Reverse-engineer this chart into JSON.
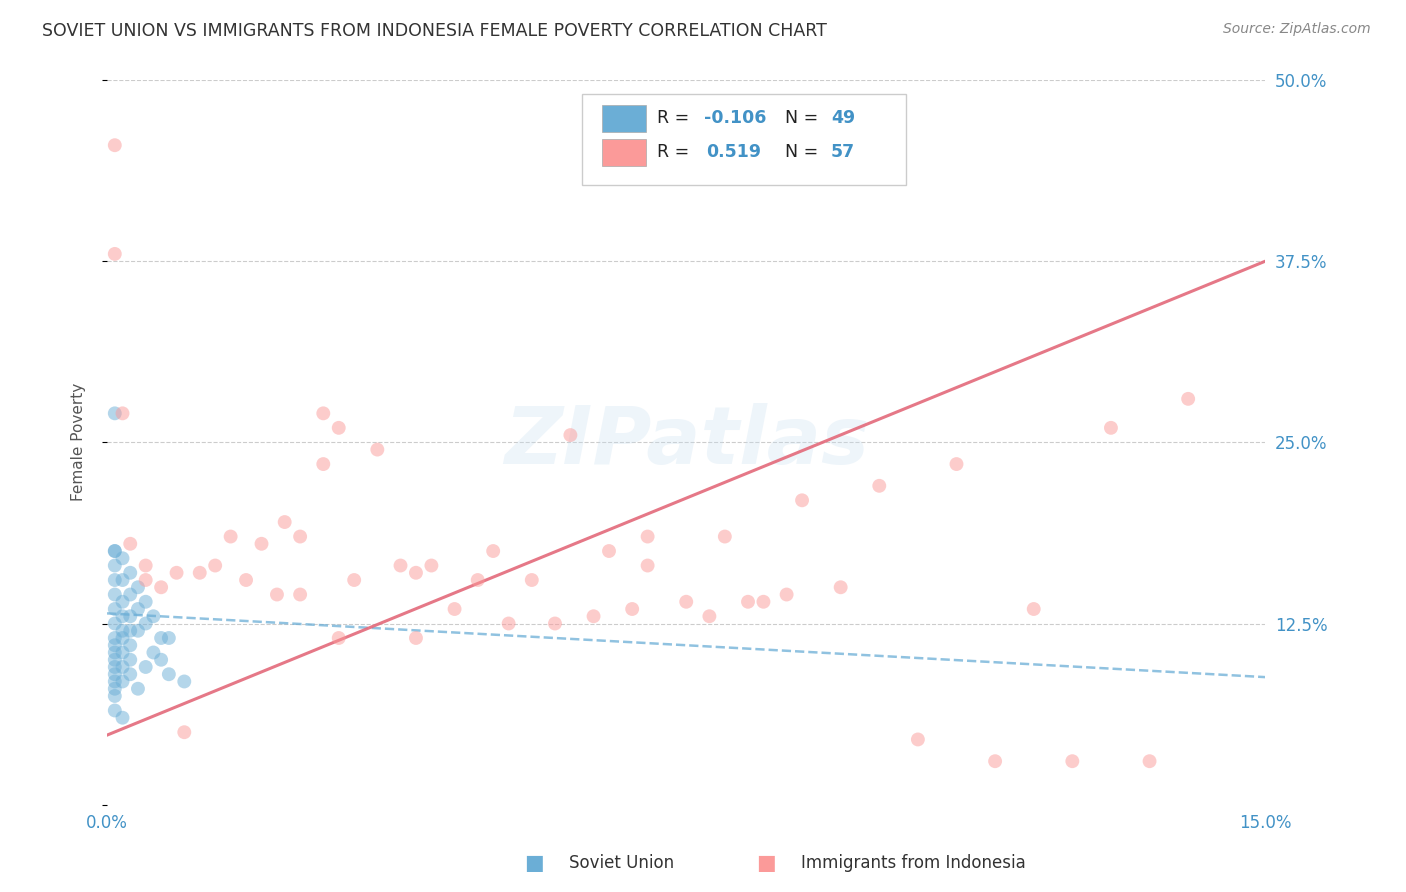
{
  "title": "SOVIET UNION VS IMMIGRANTS FROM INDONESIA FEMALE POVERTY CORRELATION CHART",
  "source": "Source: ZipAtlas.com",
  "ylabel": "Female Poverty",
  "x_min": 0.0,
  "x_max": 0.15,
  "y_min": 0.0,
  "y_max": 0.5,
  "x_ticks": [
    0.0,
    0.025,
    0.05,
    0.075,
    0.1,
    0.125,
    0.15
  ],
  "y_ticks_right": [
    0.0,
    0.125,
    0.25,
    0.375,
    0.5
  ],
  "y_tick_labels_right": [
    "",
    "12.5%",
    "25.0%",
    "37.5%",
    "50.0%"
  ],
  "soviet_color": "#6baed6",
  "indonesia_color": "#fb9a99",
  "soviet_line_color": "#6baed6",
  "indonesia_line_color": "#e3697a",
  "soviet_R": -0.106,
  "soviet_N": 49,
  "indonesia_R": 0.519,
  "indonesia_N": 57,
  "background_color": "#ffffff",
  "grid_color": "#cccccc",
  "watermark": "ZIPatlas",
  "legend_label_1": "Soviet Union",
  "legend_label_2": "Immigrants from Indonesia",
  "soviet_line_x0": 0.0,
  "soviet_line_x1": 0.15,
  "soviet_line_y0": 0.132,
  "soviet_line_y1": 0.088,
  "indonesia_line_x0": 0.0,
  "indonesia_line_x1": 0.15,
  "indonesia_line_y0": 0.048,
  "indonesia_line_y1": 0.375,
  "soviet_points_x": [
    0.001,
    0.001,
    0.001,
    0.001,
    0.001,
    0.001,
    0.001,
    0.001,
    0.001,
    0.001,
    0.001,
    0.001,
    0.001,
    0.001,
    0.001,
    0.001,
    0.001,
    0.001,
    0.002,
    0.002,
    0.002,
    0.002,
    0.002,
    0.002,
    0.002,
    0.002,
    0.002,
    0.002,
    0.003,
    0.003,
    0.003,
    0.003,
    0.003,
    0.003,
    0.003,
    0.004,
    0.004,
    0.004,
    0.004,
    0.005,
    0.005,
    0.005,
    0.006,
    0.006,
    0.007,
    0.007,
    0.008,
    0.008,
    0.01
  ],
  "soviet_points_y": [
    0.27,
    0.175,
    0.175,
    0.165,
    0.155,
    0.145,
    0.135,
    0.125,
    0.115,
    0.11,
    0.105,
    0.1,
    0.095,
    0.09,
    0.085,
    0.08,
    0.075,
    0.065,
    0.17,
    0.155,
    0.14,
    0.13,
    0.12,
    0.115,
    0.105,
    0.095,
    0.085,
    0.06,
    0.16,
    0.145,
    0.13,
    0.12,
    0.11,
    0.1,
    0.09,
    0.15,
    0.135,
    0.12,
    0.08,
    0.14,
    0.125,
    0.095,
    0.13,
    0.105,
    0.115,
    0.1,
    0.115,
    0.09,
    0.085
  ],
  "indonesia_points_x": [
    0.001,
    0.001,
    0.002,
    0.003,
    0.005,
    0.005,
    0.007,
    0.009,
    0.01,
    0.012,
    0.014,
    0.016,
    0.018,
    0.02,
    0.022,
    0.023,
    0.025,
    0.025,
    0.028,
    0.028,
    0.03,
    0.03,
    0.032,
    0.035,
    0.038,
    0.04,
    0.04,
    0.042,
    0.045,
    0.048,
    0.05,
    0.052,
    0.055,
    0.058,
    0.06,
    0.063,
    0.065,
    0.068,
    0.07,
    0.075,
    0.078,
    0.08,
    0.083,
    0.085,
    0.088,
    0.09,
    0.095,
    0.1,
    0.105,
    0.11,
    0.115,
    0.12,
    0.125,
    0.13,
    0.135,
    0.14,
    0.07
  ],
  "indonesia_points_y": [
    0.455,
    0.38,
    0.27,
    0.18,
    0.155,
    0.165,
    0.15,
    0.16,
    0.05,
    0.16,
    0.165,
    0.185,
    0.155,
    0.18,
    0.145,
    0.195,
    0.145,
    0.185,
    0.27,
    0.235,
    0.26,
    0.115,
    0.155,
    0.245,
    0.165,
    0.16,
    0.115,
    0.165,
    0.135,
    0.155,
    0.175,
    0.125,
    0.155,
    0.125,
    0.255,
    0.13,
    0.175,
    0.135,
    0.165,
    0.14,
    0.13,
    0.185,
    0.14,
    0.14,
    0.145,
    0.21,
    0.15,
    0.22,
    0.045,
    0.235,
    0.03,
    0.135,
    0.03,
    0.26,
    0.03,
    0.28,
    0.185
  ]
}
